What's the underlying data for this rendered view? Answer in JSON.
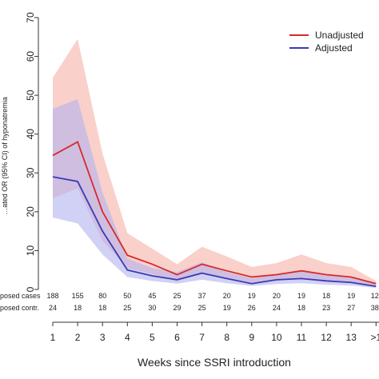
{
  "chart_data": {
    "type": "line",
    "title": "",
    "xlabel": "Weeks since SSRI introduction",
    "ylabel": "…ated OR (95% CI) of hyponatremia",
    "ylim": [
      0,
      70
    ],
    "yticks": [
      0,
      10,
      20,
      30,
      40,
      50,
      60,
      70
    ],
    "x": [
      1,
      2,
      3,
      4,
      5,
      6,
      7,
      8,
      9,
      10,
      11,
      12,
      13,
      14
    ],
    "x_tick_labels": [
      "1",
      "2",
      "3",
      "4",
      "5",
      "6",
      "7",
      "8",
      "9",
      "10",
      "11",
      "12",
      "13",
      ">1"
    ],
    "legend_position": "top-right",
    "series": [
      {
        "name": "Unadjusted",
        "color": "#d62b2b",
        "band_color": "#f7b7ad",
        "values": [
          34.5,
          38.0,
          20.0,
          8.8,
          6.5,
          3.8,
          6.5,
          4.8,
          3.2,
          3.8,
          4.8,
          3.8,
          3.2,
          1.5
        ],
        "lower": [
          23.5,
          26.0,
          12.5,
          5.5,
          4.0,
          2.0,
          4.2,
          3.0,
          1.8,
          2.2,
          2.8,
          2.2,
          1.8,
          0.8
        ],
        "upper": [
          54.5,
          64.5,
          35.0,
          14.5,
          10.5,
          6.5,
          11.0,
          8.5,
          5.8,
          6.8,
          9.0,
          6.8,
          5.8,
          2.2
        ]
      },
      {
        "name": "Adjusted",
        "color": "#3a3ab8",
        "band_color": "#b3b3ee",
        "values": [
          29.0,
          27.8,
          15.0,
          5.0,
          3.5,
          2.5,
          4.2,
          2.8,
          1.5,
          2.5,
          2.8,
          2.2,
          1.8,
          0.8
        ],
        "lower": [
          18.5,
          17.0,
          9.0,
          3.2,
          2.2,
          1.5,
          2.5,
          1.6,
          0.9,
          1.4,
          1.6,
          1.2,
          1.0,
          0.4
        ],
        "upper": [
          46.5,
          49.0,
          25.0,
          8.0,
          5.5,
          4.5,
          7.0,
          4.5,
          2.8,
          4.0,
          4.8,
          3.8,
          3.2,
          1.6
        ]
      }
    ],
    "table_rows": [
      {
        "label": "posed cases",
        "values": [
          "188",
          "155",
          "80",
          "50",
          "45",
          "25",
          "37",
          "20",
          "19",
          "20",
          "19",
          "18",
          "19",
          "12("
        ]
      },
      {
        "label": "posed contr.",
        "values": [
          "24",
          "18",
          "18",
          "25",
          "30",
          "29",
          "25",
          "19",
          "26",
          "24",
          "18",
          "23",
          "27",
          "38("
        ]
      }
    ]
  }
}
